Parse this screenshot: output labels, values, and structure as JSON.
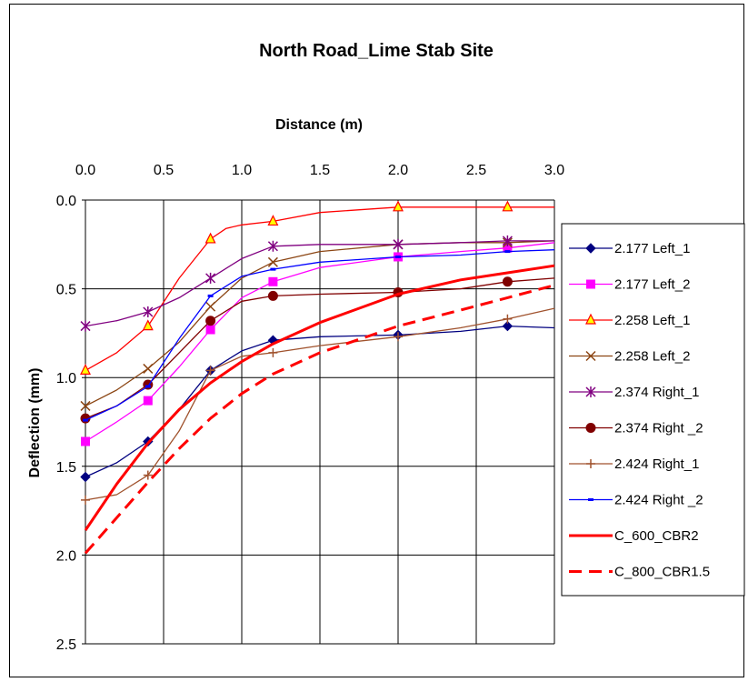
{
  "chart_data": {
    "type": "line",
    "title": "North Road_Lime Stab Site",
    "xlabel": "Distance (m)",
    "ylabel": "Deflection (mm)",
    "xlim": [
      0,
      3
    ],
    "ylim": [
      0,
      2.5
    ],
    "y_inverted": true,
    "x_axis_position": "top",
    "x_ticks": [
      "0.0",
      "0.5",
      "1.0",
      "1.5",
      "2.0",
      "2.5",
      "3.0"
    ],
    "y_ticks": [
      "0.0",
      "0.5",
      "1.0",
      "1.5",
      "2.0",
      "2.5"
    ],
    "grid": true,
    "legend_position": "right",
    "series": [
      {
        "name": "2.177 Left_1",
        "color": "#000080",
        "marker": "diamond",
        "dash": "solid",
        "x": [
          0,
          0.2,
          0.4,
          0.6,
          0.8,
          1.0,
          1.2,
          1.5,
          2.0,
          2.4,
          2.7,
          3.0
        ],
        "y": [
          1.56,
          1.48,
          1.36,
          1.18,
          0.96,
          0.85,
          0.79,
          0.77,
          0.76,
          0.74,
          0.71,
          0.72
        ],
        "marker_x": [
          0,
          0.4,
          0.8,
          1.2,
          2.0,
          2.7
        ],
        "marker_y": [
          1.56,
          1.36,
          0.96,
          0.79,
          0.76,
          0.71
        ]
      },
      {
        "name": "2.177 Left_2",
        "color": "#FF00FF",
        "marker": "square",
        "dash": "solid",
        "x": [
          0,
          0.2,
          0.4,
          0.6,
          0.8,
          1.0,
          1.2,
          1.5,
          2.0,
          2.4,
          2.7,
          3.0
        ],
        "y": [
          1.36,
          1.25,
          1.13,
          0.94,
          0.73,
          0.55,
          0.46,
          0.38,
          0.32,
          0.29,
          0.27,
          0.24
        ],
        "marker_x": [
          0,
          0.4,
          0.8,
          1.2,
          2.0,
          2.7
        ],
        "marker_y": [
          1.36,
          1.13,
          0.73,
          0.46,
          0.32,
          0.27
        ]
      },
      {
        "name": "2.258 Left_1",
        "color": "#FF0000",
        "marker": "triangle",
        "marker_fill": "#FFFF00",
        "dash": "solid",
        "x": [
          0,
          0.2,
          0.4,
          0.6,
          0.8,
          0.9,
          1.0,
          1.2,
          1.5,
          2.0,
          2.4,
          2.7,
          3.0
        ],
        "y": [
          0.96,
          0.86,
          0.71,
          0.44,
          0.22,
          0.16,
          0.14,
          0.12,
          0.07,
          0.04,
          0.04,
          0.04,
          0.04
        ],
        "marker_x": [
          0,
          0.4,
          0.8,
          1.2,
          2.0,
          2.7
        ],
        "marker_y": [
          0.96,
          0.71,
          0.22,
          0.12,
          0.04,
          0.04
        ]
      },
      {
        "name": "2.258 Left_2",
        "color": "#8B4513",
        "marker": "x",
        "dash": "solid",
        "x": [
          0,
          0.2,
          0.4,
          0.6,
          0.8,
          1.0,
          1.2,
          1.5,
          2.0,
          2.4,
          2.7,
          3.0
        ],
        "y": [
          1.16,
          1.07,
          0.95,
          0.8,
          0.6,
          0.44,
          0.35,
          0.29,
          0.25,
          0.24,
          0.24,
          0.23
        ],
        "marker_x": [
          0,
          0.4,
          0.8,
          1.2,
          2.0,
          2.7
        ],
        "marker_y": [
          1.16,
          0.95,
          0.6,
          0.35,
          0.25,
          0.24
        ]
      },
      {
        "name": "2.374 Right_1",
        "color": "#800080",
        "marker": "star",
        "dash": "solid",
        "x": [
          0,
          0.2,
          0.4,
          0.6,
          0.8,
          1.0,
          1.2,
          1.5,
          2.0,
          2.4,
          2.7,
          3.0
        ],
        "y": [
          0.71,
          0.68,
          0.63,
          0.55,
          0.44,
          0.33,
          0.26,
          0.25,
          0.25,
          0.24,
          0.23,
          0.23
        ],
        "marker_x": [
          0,
          0.4,
          0.8,
          1.2,
          2.0,
          2.7
        ],
        "marker_y": [
          0.71,
          0.63,
          0.44,
          0.26,
          0.25,
          0.23
        ]
      },
      {
        "name": "2.374 Right _2",
        "color": "#800000",
        "marker": "circle",
        "dash": "solid",
        "x": [
          0,
          0.2,
          0.4,
          0.6,
          0.8,
          1.0,
          1.2,
          1.5,
          2.0,
          2.4,
          2.7,
          3.0
        ],
        "y": [
          1.23,
          1.16,
          1.04,
          0.86,
          0.68,
          0.57,
          0.54,
          0.53,
          0.52,
          0.5,
          0.46,
          0.44
        ],
        "marker_x": [
          0,
          0.4,
          0.8,
          1.2,
          2.0,
          2.7
        ],
        "marker_y": [
          1.23,
          1.04,
          0.68,
          0.54,
          0.52,
          0.46
        ]
      },
      {
        "name": "2.424 Right_1",
        "color": "#A0522D",
        "marker": "plus",
        "dash": "solid",
        "x": [
          0,
          0.2,
          0.4,
          0.6,
          0.8,
          1.0,
          1.2,
          1.5,
          2.0,
          2.4,
          2.7,
          3.0
        ],
        "y": [
          1.69,
          1.66,
          1.55,
          1.3,
          0.96,
          0.88,
          0.86,
          0.82,
          0.77,
          0.72,
          0.67,
          0.61
        ],
        "marker_x": [
          0,
          0.4,
          0.8,
          1.2,
          2.0,
          2.7
        ],
        "marker_y": [
          1.69,
          1.55,
          0.96,
          0.86,
          0.77,
          0.67
        ]
      },
      {
        "name": "2.424 Right _2",
        "color": "#0000FF",
        "marker": "dash",
        "dash": "solid",
        "x": [
          0,
          0.2,
          0.4,
          0.6,
          0.8,
          1.0,
          1.2,
          1.5,
          2.0,
          2.4,
          2.7,
          3.0
        ],
        "y": [
          1.24,
          1.16,
          1.05,
          0.78,
          0.54,
          0.43,
          0.39,
          0.35,
          0.32,
          0.31,
          0.29,
          0.28
        ],
        "marker_x": [
          0,
          0.4,
          0.8,
          1.2,
          2.0,
          2.7
        ],
        "marker_y": [
          1.24,
          1.05,
          0.54,
          0.39,
          0.32,
          0.29
        ]
      },
      {
        "name": "C_600_CBR2",
        "color": "#FF0000",
        "marker": "none",
        "dash": "solid",
        "x": [
          0,
          0.2,
          0.4,
          0.6,
          0.8,
          1.0,
          1.2,
          1.5,
          2.0,
          2.4,
          2.7,
          3.0
        ],
        "y": [
          1.86,
          1.6,
          1.37,
          1.18,
          1.03,
          0.91,
          0.81,
          0.69,
          0.53,
          0.45,
          0.41,
          0.37
        ]
      },
      {
        "name": "C_800_CBR1.5",
        "color": "#FF0000",
        "marker": "none",
        "dash": "dashed",
        "x": [
          0,
          0.2,
          0.4,
          0.6,
          0.8,
          1.0,
          1.2,
          1.5,
          2.0,
          2.4,
          2.7,
          3.0
        ],
        "y": [
          1.99,
          1.79,
          1.59,
          1.4,
          1.23,
          1.09,
          0.98,
          0.86,
          0.71,
          0.62,
          0.55,
          0.48
        ]
      }
    ]
  }
}
